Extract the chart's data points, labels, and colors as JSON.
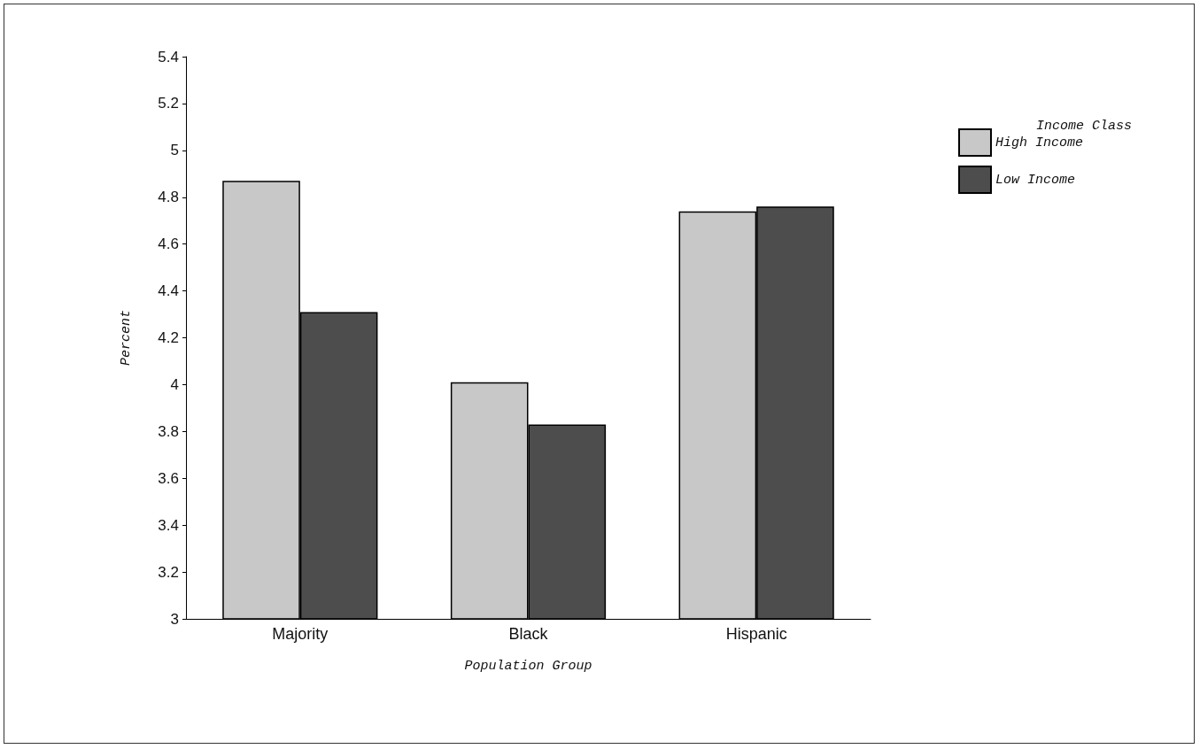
{
  "chart_data": {
    "type": "bar",
    "xlabel": "Population Group",
    "ylabel": "Percent",
    "legend_title": "Income Class",
    "categories": [
      "Majority",
      "Black",
      "Hispanic"
    ],
    "series": [
      {
        "name": "High Income",
        "color": "#c8c8c8",
        "values": [
          4.87,
          4.01,
          4.74
        ]
      },
      {
        "name": "Low Income",
        "color": "#4d4d4d",
        "values": [
          4.31,
          3.83,
          4.76
        ]
      }
    ],
    "ylim": [
      3,
      5.4
    ],
    "yticks": [
      3,
      3.2,
      3.4,
      3.6,
      3.8,
      4,
      4.2,
      4.4,
      4.6,
      4.8,
      5,
      5.2,
      5.4
    ],
    "grid": false,
    "legend": "top right"
  }
}
